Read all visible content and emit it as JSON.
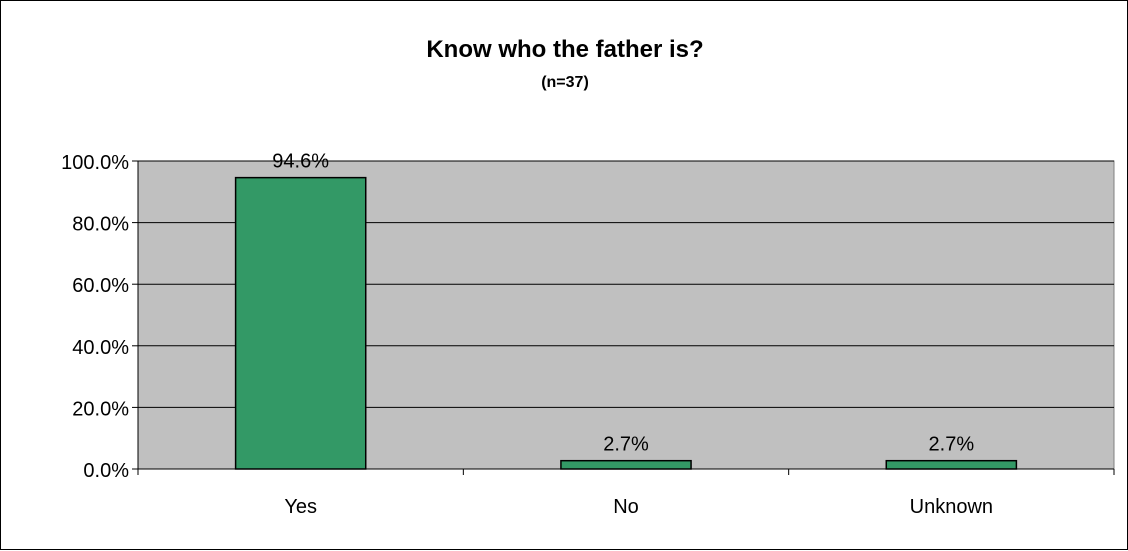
{
  "chart_data": {
    "type": "bar",
    "title": "Know who the father is?",
    "subtitle": "(n=37)",
    "categories": [
      "Yes",
      "No",
      "Unknown"
    ],
    "values": [
      94.6,
      2.7,
      2.7
    ],
    "data_labels": [
      "94.6%",
      "2.7%",
      "2.7%"
    ],
    "ylim": [
      0,
      100
    ],
    "yticks": [
      0,
      20,
      40,
      60,
      80,
      100
    ],
    "ytick_labels": [
      "0.0%",
      "20.0%",
      "40.0%",
      "60.0%",
      "80.0%",
      "100.0%"
    ],
    "xlabel": "",
    "ylabel": "",
    "grid": true,
    "legend": "none",
    "colors": {
      "bar": "#339966",
      "plot_background": "#c0c0c0",
      "gridline": "#000000"
    }
  }
}
